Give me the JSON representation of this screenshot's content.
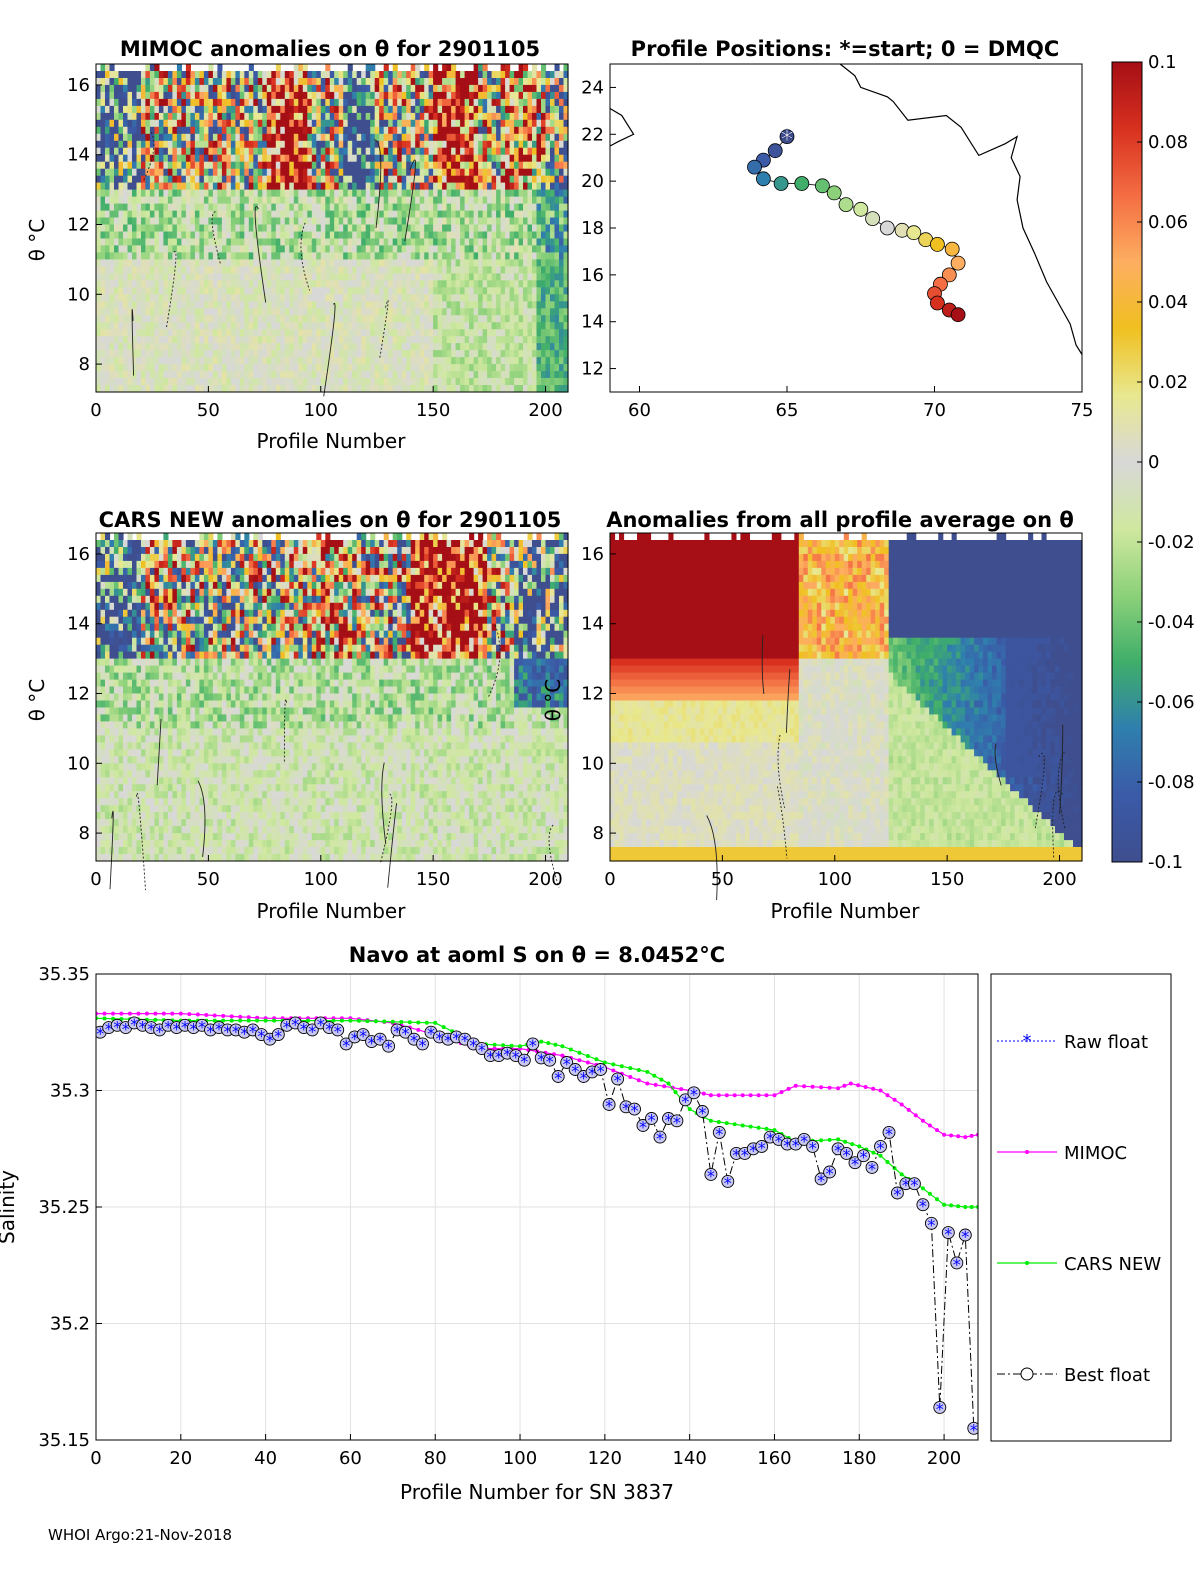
{
  "footer": "WHOI Argo:21-Nov-2018",
  "colorbar": {
    "ticks": [
      "0.1",
      "0.08",
      "0.06",
      "0.04",
      "0.02",
      "0",
      "-0.02",
      "-0.04",
      "-0.06",
      "-0.08",
      "-0.1"
    ],
    "stops": [
      "#a50f15",
      "#d7301f",
      "#f46d43",
      "#fdae61",
      "#f0c020",
      "#e8e890",
      "#d8d8d8",
      "#d0e8a0",
      "#8cd17a",
      "#3fae6a",
      "#2f7fae",
      "#3b5aa8",
      "#3e4e8e"
    ]
  },
  "chart_data": [
    {
      "id": "mimoc",
      "type": "heatmap",
      "title": "MIMOC anomalies on θ  for 2901105",
      "xlabel": "Profile Number",
      "ylabel": "θ °C",
      "xticks": [
        "0",
        "50",
        "100",
        "150",
        "200"
      ],
      "yticks": [
        "8",
        "10",
        "12",
        "14",
        "16"
      ],
      "xlim": [
        0,
        210
      ],
      "ylim": [
        7.2,
        16.6
      ],
      "clim": [
        -0.1,
        0.1
      ]
    },
    {
      "id": "positions",
      "type": "scatter",
      "title": "Profile Positions: *=start; 0 = DMQC",
      "xticks": [
        "60",
        "65",
        "70",
        "75"
      ],
      "yticks": [
        "12",
        "14",
        "16",
        "18",
        "20",
        "22",
        "24"
      ],
      "xlim": [
        59,
        75
      ],
      "ylim": [
        11,
        25
      ],
      "track": [
        [
          65.0,
          21.9
        ],
        [
          64.6,
          21.3
        ],
        [
          64.2,
          20.9
        ],
        [
          63.9,
          20.6
        ],
        [
          64.2,
          20.1
        ],
        [
          64.8,
          19.9
        ],
        [
          65.5,
          19.9
        ],
        [
          66.2,
          19.8
        ],
        [
          66.6,
          19.5
        ],
        [
          67.0,
          19.0
        ],
        [
          67.5,
          18.8
        ],
        [
          67.9,
          18.4
        ],
        [
          68.4,
          18.0
        ],
        [
          68.9,
          17.9
        ],
        [
          69.3,
          17.8
        ],
        [
          69.7,
          17.5
        ],
        [
          70.1,
          17.3
        ],
        [
          70.6,
          17.1
        ],
        [
          70.8,
          16.5
        ],
        [
          70.5,
          16.0
        ],
        [
          70.2,
          15.6
        ],
        [
          70.0,
          15.2
        ],
        [
          70.1,
          14.8
        ],
        [
          70.5,
          14.5
        ],
        [
          70.8,
          14.3
        ]
      ],
      "coast": [
        [
          59.0,
          23.1
        ],
        [
          59.4,
          22.8
        ],
        [
          59.6,
          22.4
        ],
        [
          59.8,
          22.0
        ],
        [
          59.3,
          21.7
        ],
        [
          59.0,
          21.5
        ]
      ],
      "coast2": [
        [
          66.8,
          25.0
        ],
        [
          67.3,
          24.5
        ],
        [
          67.5,
          24.0
        ],
        [
          68.4,
          23.6
        ],
        [
          68.6,
          23.4
        ],
        [
          69.1,
          22.6
        ],
        [
          70.4,
          22.8
        ],
        [
          70.9,
          22.3
        ],
        [
          71.5,
          21.1
        ],
        [
          72.4,
          21.6
        ],
        [
          72.8,
          21.9
        ],
        [
          72.6,
          21.0
        ],
        [
          72.9,
          20.2
        ],
        [
          72.8,
          19.2
        ],
        [
          73.0,
          18.0
        ],
        [
          73.4,
          16.9
        ],
        [
          73.8,
          15.7
        ],
        [
          74.2,
          14.8
        ],
        [
          74.6,
          13.9
        ],
        [
          74.8,
          13.0
        ],
        [
          75.0,
          12.6
        ]
      ]
    },
    {
      "id": "cars",
      "type": "heatmap",
      "title": "CARS NEW anomalies on θ for 2901105",
      "xlabel": "Profile Number",
      "ylabel": "θ °C",
      "xticks": [
        "0",
        "50",
        "100",
        "150",
        "200"
      ],
      "yticks": [
        "8",
        "10",
        "12",
        "14",
        "16"
      ],
      "xlim": [
        0,
        210
      ],
      "ylim": [
        7.2,
        16.6
      ],
      "clim": [
        -0.1,
        0.1
      ]
    },
    {
      "id": "avg",
      "type": "heatmap",
      "title": "Anomalies from all profile average on θ",
      "xlabel": "Profile Number",
      "ylabel": "θ °C",
      "xticks": [
        "0",
        "50",
        "100",
        "150",
        "200"
      ],
      "yticks": [
        "8",
        "10",
        "12",
        "14",
        "16"
      ],
      "xlim": [
        0,
        210
      ],
      "ylim": [
        7.2,
        16.6
      ],
      "clim": [
        -0.1,
        0.1
      ]
    },
    {
      "id": "salinity",
      "type": "line",
      "title": "Navo at aoml S on θ = 8.0452°C",
      "xlabel": "Profile Number for SN 3837",
      "ylabel": "Salinity",
      "xticks": [
        "0",
        "20",
        "40",
        "60",
        "80",
        "100",
        "120",
        "140",
        "160",
        "180",
        "200"
      ],
      "yticks": [
        "35.35",
        "35.3",
        "35.25",
        "35.2",
        "35.15"
      ],
      "xlim": [
        0,
        208
      ],
      "ylim": [
        35.15,
        35.35
      ],
      "legend": [
        "Raw float",
        "MIMOC",
        "CARS NEW",
        "Best float"
      ],
      "series": [
        {
          "name": "MIMOC",
          "color": "#ff00ff",
          "x": [
            0,
            10,
            20,
            30,
            40,
            50,
            60,
            70,
            80,
            90,
            100,
            110,
            120,
            130,
            140,
            145,
            160,
            165,
            175,
            178,
            185,
            190,
            195,
            200,
            205,
            208
          ],
          "y": [
            35.333,
            35.333,
            35.333,
            35.332,
            35.331,
            35.331,
            35.331,
            35.329,
            35.324,
            35.318,
            35.318,
            35.315,
            35.31,
            35.303,
            35.3,
            35.298,
            35.298,
            35.302,
            35.301,
            35.303,
            35.3,
            35.294,
            35.287,
            35.281,
            35.28,
            35.281
          ]
        },
        {
          "name": "CARS NEW",
          "color": "#00ee00",
          "x": [
            0,
            20,
            40,
            60,
            80,
            90,
            100,
            105,
            110,
            120,
            130,
            135,
            140,
            145,
            160,
            165,
            175,
            180,
            185,
            190,
            195,
            200,
            205,
            208
          ],
          "y": [
            35.331,
            35.33,
            35.33,
            35.33,
            35.329,
            35.32,
            35.319,
            35.321,
            35.319,
            35.312,
            35.308,
            35.303,
            35.292,
            35.287,
            35.283,
            35.278,
            35.279,
            35.276,
            35.272,
            35.264,
            35.258,
            35.251,
            35.25,
            35.25
          ]
        },
        {
          "name": "Best float",
          "color": "#000000",
          "x": [
            1,
            3,
            5,
            7,
            9,
            11,
            13,
            15,
            17,
            19,
            21,
            23,
            25,
            27,
            29,
            31,
            33,
            35,
            37,
            39,
            41,
            43,
            45,
            47,
            49,
            51,
            53,
            55,
            57,
            59,
            61,
            63,
            65,
            67,
            69,
            71,
            73,
            75,
            77,
            79,
            81,
            83,
            85,
            87,
            89,
            91,
            93,
            95,
            97,
            99,
            101,
            103,
            105,
            107,
            109,
            111,
            113,
            115,
            117,
            119,
            121,
            123,
            125,
            127,
            129,
            131,
            133,
            135,
            137,
            139,
            141,
            143,
            145,
            147,
            149,
            151,
            153,
            155,
            157,
            159,
            161,
            163,
            165,
            167,
            169,
            171,
            173,
            175,
            177,
            179,
            181,
            183,
            185,
            187,
            189,
            191,
            193,
            195,
            197,
            199,
            201,
            203,
            205,
            207
          ],
          "y": [
            35.325,
            35.327,
            35.328,
            35.327,
            35.329,
            35.328,
            35.327,
            35.326,
            35.328,
            35.327,
            35.328,
            35.327,
            35.328,
            35.326,
            35.327,
            35.326,
            35.326,
            35.325,
            35.326,
            35.324,
            35.322,
            35.324,
            35.328,
            35.329,
            35.327,
            35.326,
            35.329,
            35.327,
            35.326,
            35.32,
            35.323,
            35.324,
            35.321,
            35.322,
            35.319,
            35.326,
            35.325,
            35.322,
            35.32,
            35.325,
            35.323,
            35.322,
            35.323,
            35.322,
            35.32,
            35.318,
            35.315,
            35.315,
            35.316,
            35.315,
            35.313,
            35.32,
            35.314,
            35.313,
            35.306,
            35.312,
            35.309,
            35.306,
            35.308,
            35.309,
            35.294,
            35.305,
            35.293,
            35.292,
            35.285,
            35.288,
            35.28,
            35.288,
            35.287,
            35.296,
            35.299,
            35.291,
            35.264,
            35.282,
            35.261,
            35.273,
            35.273,
            35.275,
            35.276,
            35.28,
            35.279,
            35.277,
            35.277,
            35.279,
            35.276,
            35.262,
            35.265,
            35.275,
            35.273,
            35.269,
            35.272,
            35.267,
            35.276,
            35.282,
            35.256,
            35.26,
            35.26,
            35.251,
            35.243,
            35.164,
            35.239,
            35.226,
            35.238,
            35.155
          ]
        }
      ]
    }
  ]
}
